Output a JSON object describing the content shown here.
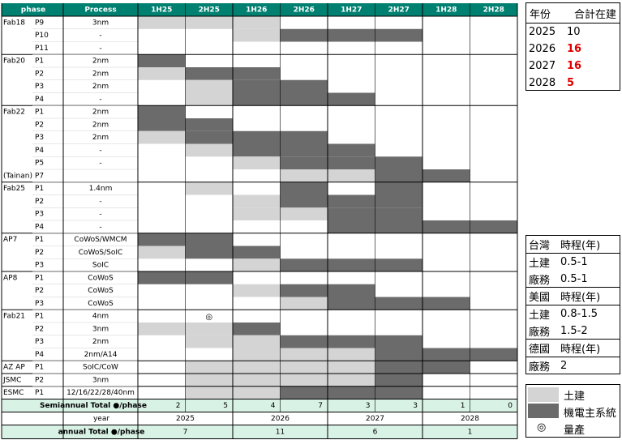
{
  "chart_data": {
    "type": "table",
    "headers": {
      "phase": "phase",
      "process": "Process",
      "periods": [
        "1H25",
        "2H25",
        "1H26",
        "2H26",
        "1H27",
        "2H27",
        "1H28",
        "2H28"
      ]
    },
    "rows": [
      {
        "group": "Fab18",
        "phase": "P9",
        "process": "3nm",
        "bars": [
          [
            "l",
            0,
            3
          ]
        ]
      },
      {
        "group": "",
        "phase": "P10",
        "process": "-",
        "bars": [
          [
            "l",
            2,
            3
          ],
          [
            "d",
            3,
            6
          ]
        ]
      },
      {
        "group": "",
        "phase": "P11",
        "process": "-",
        "bars": []
      },
      {
        "group": "Fab20",
        "phase": "P1",
        "process": "2nm",
        "bars": [
          [
            "d",
            0,
            1
          ]
        ]
      },
      {
        "group": "",
        "phase": "P2",
        "process": "2nm",
        "bars": [
          [
            "l",
            0,
            1
          ],
          [
            "d",
            1,
            3
          ]
        ]
      },
      {
        "group": "",
        "phase": "P3",
        "process": "2nm",
        "bars": [
          [
            "l",
            1,
            2
          ],
          [
            "d",
            2,
            4
          ]
        ]
      },
      {
        "group": "",
        "phase": "P4",
        "process": "-",
        "bars": [
          [
            "l",
            1,
            2
          ],
          [
            "d",
            2,
            5
          ]
        ]
      },
      {
        "group": "Fab22",
        "phase": "P1",
        "process": "2nm",
        "bars": [
          [
            "d",
            0,
            1
          ]
        ]
      },
      {
        "group": "",
        "phase": "P2",
        "process": "2nm",
        "bars": [
          [
            "d",
            0,
            2
          ]
        ]
      },
      {
        "group": "",
        "phase": "P3",
        "process": "2nm",
        "bars": [
          [
            "l",
            0,
            1
          ],
          [
            "d",
            1,
            4
          ]
        ]
      },
      {
        "group": "",
        "phase": "P4",
        "process": "-",
        "bars": [
          [
            "l",
            1,
            2
          ],
          [
            "d",
            2,
            5
          ]
        ]
      },
      {
        "group": "",
        "phase": "P5",
        "process": "-",
        "bars": [
          [
            "l",
            2,
            3
          ],
          [
            "d",
            3,
            6
          ]
        ]
      },
      {
        "group": "(Tainan)",
        "phase": "P7",
        "process": "",
        "bars": [
          [
            "l",
            3,
            5
          ],
          [
            "d",
            5,
            7
          ]
        ]
      },
      {
        "group": "Fab25",
        "phase": "P1",
        "process": "1.4nm",
        "bars": [
          [
            "l",
            1,
            2
          ],
          [
            "d",
            3,
            4
          ],
          [
            "d",
            5,
            6
          ]
        ]
      },
      {
        "group": "",
        "phase": "P2",
        "process": "-",
        "bars": [
          [
            "l",
            2,
            3
          ],
          [
            "d",
            3,
            6
          ]
        ]
      },
      {
        "group": "",
        "phase": "P3",
        "process": "-",
        "bars": [
          [
            "l",
            2,
            3
          ],
          [
            "l",
            3,
            4
          ],
          [
            "d",
            4,
            6
          ]
        ]
      },
      {
        "group": "",
        "phase": "P4",
        "process": "-",
        "bars": [
          [
            "d",
            4,
            8
          ]
        ]
      },
      {
        "group": "AP7",
        "phase": "P1",
        "process": "CoWoS/WMCM",
        "bars": [
          [
            "d",
            0,
            2
          ]
        ]
      },
      {
        "group": "",
        "phase": "P2",
        "process": "CoWoS/SoIC",
        "bars": [
          [
            "l",
            0,
            1
          ],
          [
            "d",
            1,
            3
          ]
        ]
      },
      {
        "group": "",
        "phase": "P3",
        "process": "SoIC",
        "bars": [
          [
            "l",
            2,
            3
          ],
          [
            "d",
            3,
            6
          ]
        ]
      },
      {
        "group": "AP8",
        "phase": "P1",
        "process": "CoWoS",
        "bars": [
          [
            "d",
            0,
            2
          ]
        ]
      },
      {
        "group": "",
        "phase": "P2",
        "process": "CoWoS",
        "bars": [
          [
            "l",
            2,
            3
          ],
          [
            "d",
            3,
            5
          ]
        ]
      },
      {
        "group": "",
        "phase": "P3",
        "process": "CoWoS",
        "bars": [
          [
            "l",
            3,
            4
          ],
          [
            "d",
            4,
            7
          ]
        ]
      },
      {
        "group": "Fab21",
        "phase": "P1",
        "process": "4nm",
        "bars": [],
        "mark": 1
      },
      {
        "group": "",
        "phase": "P2",
        "process": "3nm",
        "bars": [
          [
            "l",
            0,
            2
          ],
          [
            "d",
            2,
            3
          ]
        ]
      },
      {
        "group": "",
        "phase": "P3",
        "process": "2nm",
        "bars": [
          [
            "l",
            1,
            3
          ],
          [
            "d",
            3,
            6
          ]
        ]
      },
      {
        "group": "",
        "phase": "P4",
        "process": "2nm/A14",
        "bars": [
          [
            "l",
            2,
            5
          ],
          [
            "d",
            5,
            8
          ]
        ]
      },
      {
        "group": "AZ AP",
        "phase": "P1",
        "process": "SoIC/CoW",
        "bars": [
          [
            "l",
            1,
            5
          ],
          [
            "d",
            5,
            7
          ]
        ]
      },
      {
        "group": "JSMC",
        "phase": "P2",
        "process": "3nm",
        "bars": [
          [
            "l",
            1,
            5
          ],
          [
            "d",
            5,
            6
          ]
        ]
      },
      {
        "group": "ESMC",
        "phase": "P1",
        "process": "12/16/22/28/40nm",
        "bars": [
          [
            "l",
            1,
            3
          ],
          [
            "d",
            3,
            6
          ]
        ]
      }
    ],
    "semiannual": {
      "label": "Semiannual Total ●/phase",
      "values": [
        "2",
        "5",
        "4",
        "7",
        "3",
        "3",
        "1",
        "0"
      ]
    },
    "year": {
      "label": "year",
      "values": [
        "2025",
        "2026",
        "2027",
        "2028"
      ]
    },
    "annual": {
      "label": "annual Total ●/phase",
      "values": [
        "7",
        "11",
        "6",
        "1"
      ]
    },
    "mark_symbol": "◎",
    "colors": {
      "header": "#008070",
      "light": "#d4d4d4",
      "dark": "#6b6b6b",
      "total": "#d9f2e6"
    }
  },
  "summary": {
    "header": [
      "年份",
      "合計在建"
    ],
    "rows": [
      [
        "2025",
        "10"
      ],
      [
        "2026",
        "16"
      ],
      [
        "2027",
        "16"
      ],
      [
        "2028",
        "5"
      ]
    ]
  },
  "schedule": {
    "rows": [
      {
        "a": "台灣",
        "b": "時程(年)",
        "head": true
      },
      {
        "a": "土建",
        "b": "0.5-1"
      },
      {
        "a": "廠務",
        "b": "0.5-1"
      },
      {
        "a": "美國",
        "b": "時程(年)",
        "head": true
      },
      {
        "a": "土建",
        "b": "0.8-1.5"
      },
      {
        "a": "廠務",
        "b": "1.5-2"
      },
      {
        "a": "德國",
        "b": "時程(年)",
        "head": true
      },
      {
        "a": "廠務",
        "b": "2"
      }
    ]
  },
  "legend": {
    "civil": "土建",
    "mep": "機電主系統",
    "mass": "量產",
    "mass_symbol": "◎"
  }
}
